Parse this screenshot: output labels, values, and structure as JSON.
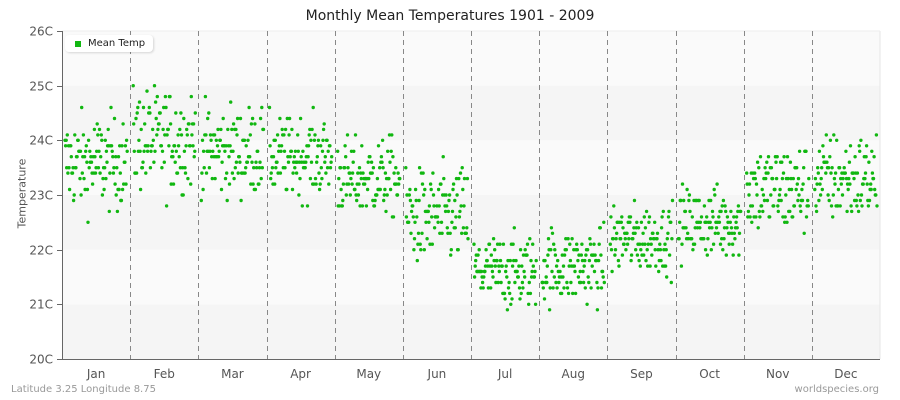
{
  "title": "Monthly Mean Temperatures 1901 - 2009",
  "legend": {
    "label": "Mean Temp",
    "color": "#11b711"
  },
  "footer": {
    "left": "Latitude 3.25 Longitude 8.75",
    "right": "worldspecies.org"
  },
  "chart_data": {
    "type": "scatter",
    "title": "Monthly Mean Temperatures 1901 - 2009",
    "xlabel": "",
    "ylabel": "Temperature",
    "ylim": [
      20,
      26
    ],
    "y_ticks": [
      "20C",
      "21C",
      "22C",
      "23C",
      "24C",
      "25C",
      "26C"
    ],
    "categories": [
      "Jan",
      "Feb",
      "Mar",
      "Apr",
      "May",
      "Jun",
      "Jul",
      "Aug",
      "Sep",
      "Oct",
      "Nov",
      "Dec"
    ],
    "years": "1901-2009",
    "points_per_month": 109,
    "series": [
      {
        "name": "Mean Temp",
        "color": "#11b711",
        "monthly_summary": [
          {
            "month": "Jan",
            "mean": 23.6,
            "min": 22.5,
            "max": 25.1
          },
          {
            "month": "Feb",
            "mean": 24.0,
            "min": 22.7,
            "max": 25.6
          },
          {
            "month": "Mar",
            "mean": 23.8,
            "min": 22.9,
            "max": 25.4
          },
          {
            "month": "Apr",
            "mean": 23.7,
            "min": 22.7,
            "max": 24.9
          },
          {
            "month": "May",
            "mean": 23.3,
            "min": 22.2,
            "max": 24.4
          },
          {
            "month": "Jun",
            "mean": 22.6,
            "min": 21.3,
            "max": 24.0
          },
          {
            "month": "Jul",
            "mean": 21.6,
            "min": 20.6,
            "max": 22.7
          },
          {
            "month": "Aug",
            "mean": 21.7,
            "min": 20.6,
            "max": 22.7
          },
          {
            "month": "Sep",
            "mean": 22.2,
            "min": 21.2,
            "max": 23.1
          },
          {
            "month": "Oct",
            "mean": 22.5,
            "min": 21.3,
            "max": 23.3
          },
          {
            "month": "Nov",
            "mean": 23.1,
            "min": 21.6,
            "max": 24.2
          },
          {
            "month": "Dec",
            "mean": 23.3,
            "min": 22.2,
            "max": 24.7
          }
        ]
      }
    ],
    "grid": {
      "horizontal_bands": true,
      "vertical_dashed_month_separators": true
    },
    "legend_position": "top-left inside"
  }
}
